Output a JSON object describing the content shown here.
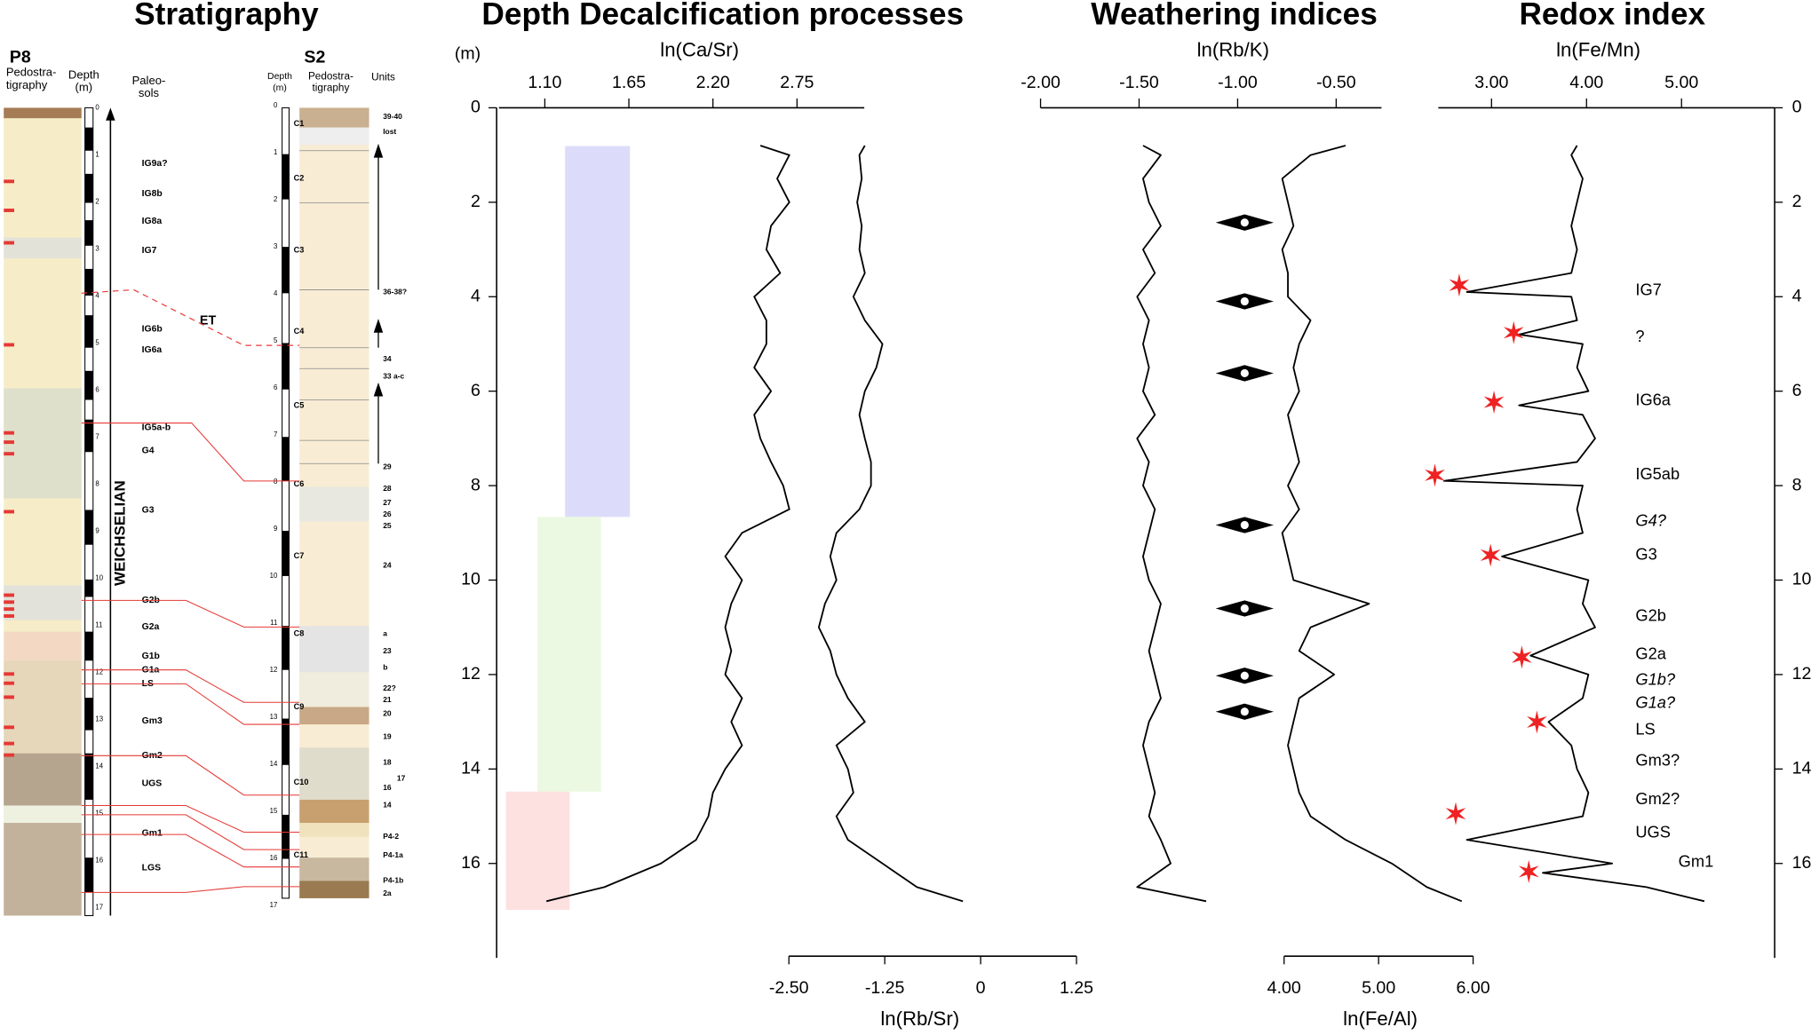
{
  "headings": [
    "Stratigraphy",
    "Depth Decalcification processes",
    "Weathering indices",
    "Redox index"
  ],
  "stratigraphy": {
    "p8": {
      "title": "P8",
      "pedostratigraphy": [
        "Pedostra-",
        "tigraphy"
      ],
      "depth": [
        "Depth",
        "(m)"
      ],
      "paleosols_header": [
        "Paleo-",
        "sols"
      ],
      "depth_ticks": [
        0,
        1,
        2,
        3,
        4,
        5,
        6,
        7,
        8,
        9,
        10,
        11,
        12,
        13,
        14,
        15,
        16,
        17
      ],
      "paleosols": [
        "IG9a?",
        "IG8b",
        "IG8a",
        "IG7",
        "IG6b",
        "IG6a",
        "IG5a-b",
        "G4",
        "G3",
        "G2b",
        "G2a",
        "G1b",
        "G1a",
        "LS",
        "Gm3",
        "Gm2",
        "UGS",
        "Gm1",
        "LGS"
      ],
      "stage": "WEICHSELIAN"
    },
    "correlation_label": "ET",
    "s2": {
      "title": "S2",
      "depth": [
        "Depth",
        "(m)"
      ],
      "pedostratigraphy": [
        "Pedostra-",
        "tigraphy"
      ],
      "units_header": "Units",
      "depth_ticks": [
        0,
        1,
        2,
        3,
        4,
        5,
        6,
        7,
        8,
        9,
        10,
        11,
        12,
        13,
        14,
        15,
        16,
        17
      ],
      "core_sections": [
        "C1",
        "C2",
        "C3",
        "C4",
        "C5",
        "C6",
        "C7",
        "C8",
        "C9",
        "C10",
        "C11"
      ],
      "units": [
        "39-40",
        "lost",
        "36-38?",
        "34",
        "33 a-c",
        "29",
        "28",
        "27",
        "26",
        "25",
        "24",
        "a",
        "23",
        "b",
        "22?",
        "21",
        "20",
        "19",
        "18",
        "17",
        "16",
        "14",
        "P4-2",
        "P4-1a",
        "P4-1b",
        "2a"
      ]
    }
  },
  "chart_data": [
    {
      "type": "line",
      "ylabel": "(m)",
      "ylim": [
        0,
        18
      ],
      "yticks": [
        0,
        2,
        4,
        6,
        8,
        10,
        12,
        14,
        16
      ],
      "xlabel": "ln(Ca/Sr)",
      "xlim": [
        0.8,
        3.19
      ],
      "xticks": [
        {
          "value": 1.1,
          "label": "1.10"
        },
        {
          "value": 1.65,
          "label": "1.65"
        },
        {
          "value": 2.2,
          "label": "2.20"
        },
        {
          "value": 2.75,
          "label": "2.75"
        }
      ],
      "x2label": "ln(Rb/Sr)",
      "x2lim": [
        -2.5,
        1.25
      ],
      "x2ticks": [
        {
          "value": -2.5,
          "label": "-2.50"
        },
        {
          "value": -1.25,
          "label": "-1.25"
        },
        0,
        {
          "value": 1.25,
          "label": "1.25"
        }
      ],
      "depth": [
        0.8,
        1,
        1.5,
        2,
        2.5,
        3,
        3.5,
        4,
        4.5,
        5,
        5.5,
        6,
        6.5,
        7,
        7.5,
        8,
        8.5,
        9,
        9.5,
        10,
        10.5,
        11,
        11.5,
        12,
        12.5,
        13,
        13.5,
        14,
        14.5,
        15,
        15.5,
        16,
        16.5,
        16.8
      ],
      "series": [
        {
          "color": "#000000",
          "values": [
            2.51,
            2.7,
            2.62,
            2.7,
            2.58,
            2.55,
            2.64,
            2.47,
            2.55,
            2.55,
            2.47,
            2.58,
            2.47,
            2.51,
            2.58,
            2.66,
            2.7,
            2.39,
            2.28,
            2.39,
            2.32,
            2.28,
            2.32,
            2.28,
            2.39,
            2.32,
            2.39,
            2.28,
            2.2,
            2.17,
            2.09,
            1.86,
            1.49,
            1.11
          ]
        },
        {
          "color": "#000000",
          "axis": "x2",
          "values": [
            -1.51,
            -1.58,
            -1.55,
            -1.61,
            -1.55,
            -1.58,
            -1.51,
            -1.66,
            -1.51,
            -1.28,
            -1.36,
            -1.51,
            -1.58,
            -1.51,
            -1.43,
            -1.43,
            -1.58,
            -1.88,
            -1.96,
            -1.88,
            -2.03,
            -2.11,
            -1.96,
            -1.88,
            -1.73,
            -1.51,
            -1.88,
            -1.73,
            -1.66,
            -1.88,
            -1.73,
            -1.28,
            -0.83,
            -0.23
          ]
        }
      ]
    },
    {
      "type": "line",
      "ylim": [
        0,
        18
      ],
      "yticks": [
        0,
        2,
        4,
        6,
        8,
        10,
        12,
        14,
        16
      ],
      "xlabel": "ln(Rb/K)",
      "xlim": [
        -2.0,
        -0.27
      ],
      "xticks": [
        {
          "value": -2,
          "label": "-2.00"
        },
        {
          "value": -1.5,
          "label": "-1.50"
        },
        {
          "value": -1,
          "label": "-1.00"
        },
        {
          "value": -0.5,
          "label": "-0.50"
        }
      ],
      "x2label": "ln(Fe/Al)",
      "x2lim": [
        4,
        6
      ],
      "x2ticks": [
        {
          "value": 4,
          "label": "4.00"
        },
        {
          "value": 5,
          "label": "5.00"
        },
        {
          "value": 6,
          "label": "6.00"
        }
      ],
      "depth": [
        0.8,
        1,
        1.5,
        2,
        2.5,
        3,
        3.5,
        4,
        4.5,
        5,
        5.5,
        6,
        6.5,
        7,
        7.5,
        8,
        8.5,
        9,
        9.5,
        10,
        10.5,
        11,
        11.5,
        12,
        12.5,
        13,
        13.5,
        14,
        14.5,
        15,
        15.5,
        16,
        16.5,
        16.8
      ],
      "series": [
        {
          "color": "#000000",
          "values": [
            -1.48,
            -1.39,
            -1.48,
            -1.45,
            -1.39,
            -1.48,
            -1.42,
            -1.51,
            -1.45,
            -1.48,
            -1.45,
            -1.48,
            -1.42,
            -1.51,
            -1.45,
            -1.48,
            -1.42,
            -1.45,
            -1.48,
            -1.45,
            -1.39,
            -1.42,
            -1.45,
            -1.42,
            -1.39,
            -1.45,
            -1.48,
            -1.45,
            -1.42,
            -1.45,
            -1.39,
            -1.34,
            -1.51,
            -1.16
          ]
        },
        {
          "color": "#000000",
          "axis": "x2",
          "values": [
            4.65,
            4.28,
            3.98,
            4.04,
            4.1,
            3.98,
            4.04,
            4.04,
            4.28,
            4.16,
            4.1,
            4.16,
            4.04,
            4.1,
            4.16,
            4.04,
            4.16,
            3.98,
            4.04,
            4.1,
            4.9,
            4.28,
            4.16,
            4.53,
            4.16,
            4.1,
            4.04,
            4.1,
            4.16,
            4.28,
            4.65,
            5.14,
            5.51,
            5.88
          ]
        }
      ]
    },
    {
      "type": "line",
      "ylim": [
        0,
        18
      ],
      "yticks": [
        0,
        2,
        4,
        6,
        8,
        10,
        12,
        14,
        16
      ],
      "xlabel": "ln(Fe/Mn)",
      "xlim": [
        2.44,
        5.98
      ],
      "xticks": [
        {
          "value": 3,
          "label": "3.00"
        },
        {
          "value": 4,
          "label": "4.00"
        },
        {
          "value": 5,
          "label": "5.00"
        }
      ],
      "depth": [
        0.8,
        1,
        1.5,
        2,
        2.5,
        3,
        3.5,
        3.9,
        4,
        4.5,
        4.8,
        5,
        5.5,
        6,
        6.3,
        6.5,
        7,
        7.5,
        7.9,
        8,
        8.5,
        9,
        9.5,
        10,
        10.5,
        11,
        11.6,
        12,
        12.5,
        13,
        13.5,
        14,
        14.5,
        15,
        15.5,
        16,
        16.2,
        16.5,
        16.8
      ],
      "series": [
        {
          "color": "#000000",
          "values": [
            3.9,
            3.84,
            3.96,
            3.9,
            3.84,
            3.9,
            3.84,
            2.74,
            3.84,
            3.9,
            3.29,
            3.96,
            3.9,
            4.02,
            3.29,
            3.96,
            4.09,
            3.9,
            2.5,
            3.96,
            3.9,
            3.96,
            3.11,
            4.02,
            3.96,
            4.09,
            3.41,
            4.02,
            3.96,
            3.6,
            3.84,
            3.9,
            4.02,
            3.96,
            2.74,
            4.27,
            3.54,
            4.63,
            5.24
          ]
        }
      ],
      "annotations": [
        {
          "text": "IG7"
        },
        {
          "text": "?"
        },
        {
          "text": "IG6a"
        },
        {
          "text": "IG5ab"
        },
        {
          "text": "G4?",
          "italic": true
        },
        {
          "text": "G3"
        },
        {
          "text": "G2b"
        },
        {
          "text": "G2a"
        },
        {
          "text": "G1b?",
          "italic": true
        },
        {
          "text": "G1a?",
          "italic": true
        },
        {
          "text": "LS"
        },
        {
          "text": "Gm3?"
        },
        {
          "text": "Gm2?"
        },
        {
          "text": "UGS"
        },
        {
          "text": "Gm1"
        }
      ]
    }
  ]
}
